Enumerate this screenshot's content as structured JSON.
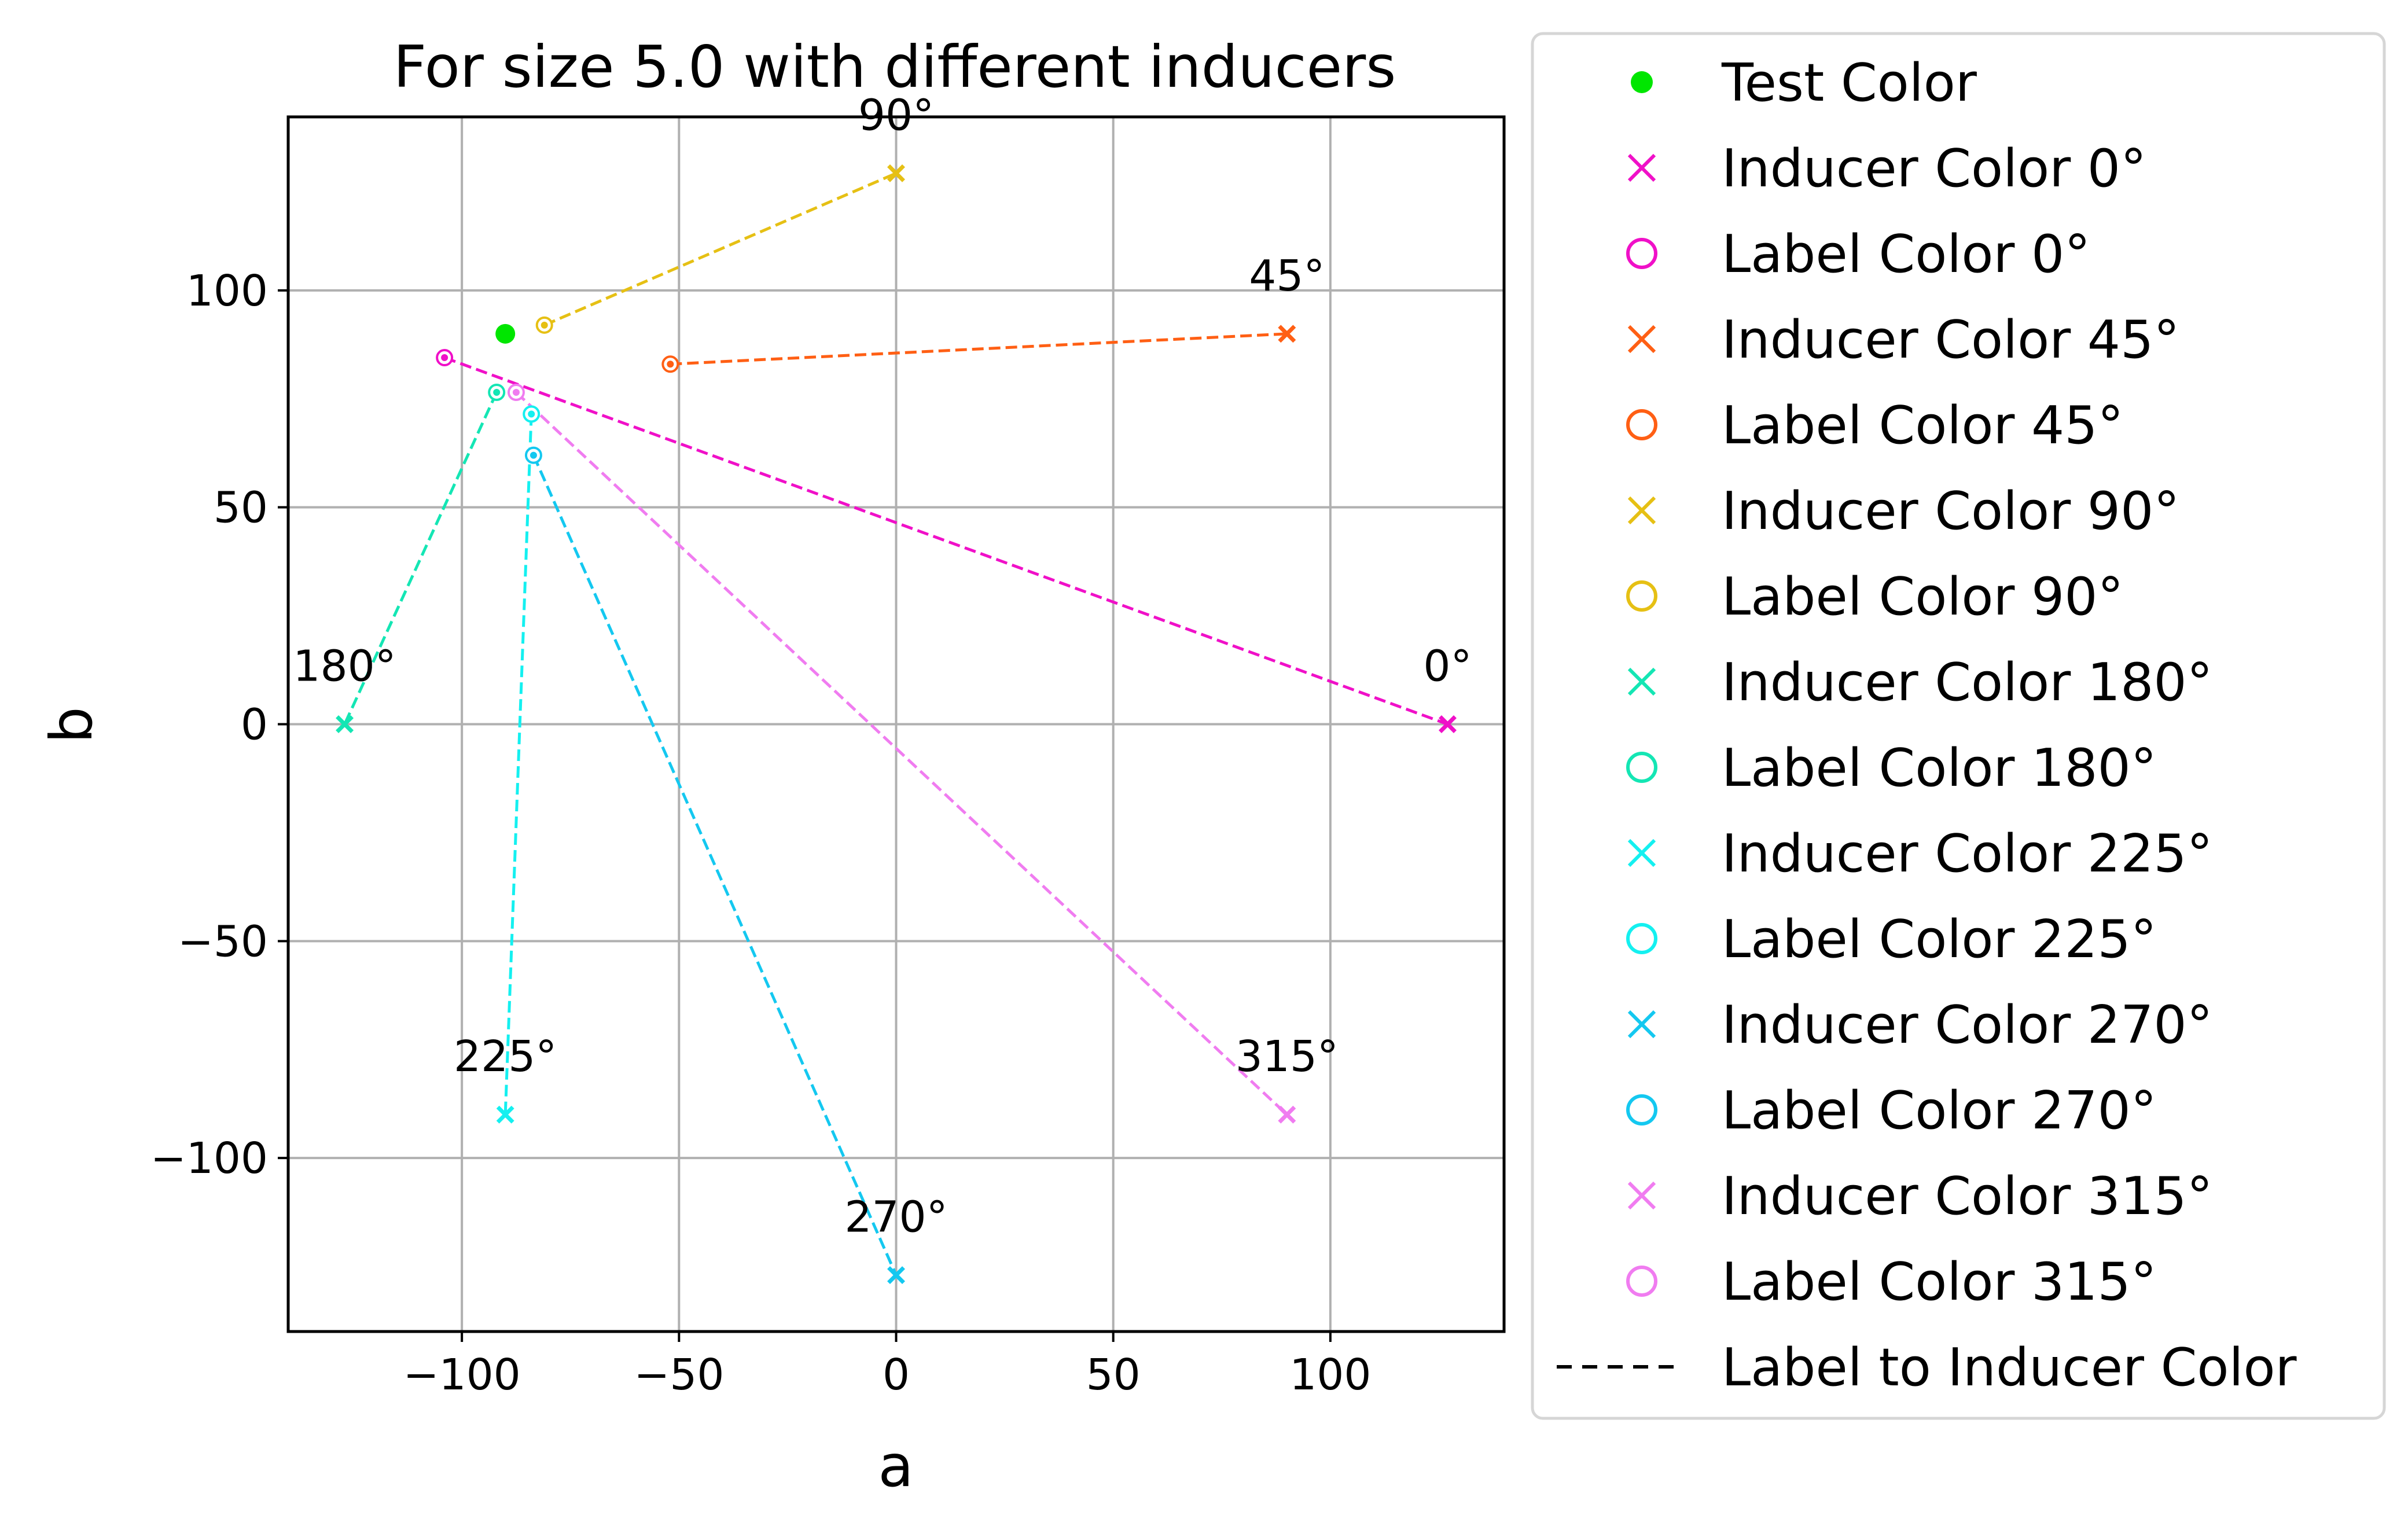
{
  "chart_data": {
    "type": "scatter",
    "title": "For size 5.0 with different inducers",
    "xlabel": "a",
    "ylabel": "b",
    "xlim": [
      -140,
      140
    ],
    "ylim": [
      -140,
      140
    ],
    "xticks": [
      -100,
      -50,
      0,
      50,
      100
    ],
    "yticks": [
      -100,
      -50,
      0,
      50,
      100
    ],
    "xtick_labels": [
      "−100",
      "−50",
      "0",
      "50",
      "100"
    ],
    "ytick_labels": [
      "−100",
      "−50",
      "0",
      "50",
      "100"
    ],
    "grid": true,
    "legend_placement": "outside-right",
    "test_color": {
      "name": "Test Color",
      "a": -90,
      "b": 90,
      "color": "#00e600"
    },
    "series": [
      {
        "angle_label": "0°",
        "inducer_name": "Inducer Color 0°",
        "label_name": "Label Color 0°",
        "color": "#f010c8",
        "inducer": [
          127,
          0
        ],
        "label": [
          -104,
          84.5
        ]
      },
      {
        "angle_label": "45°",
        "inducer_name": "Inducer Color 45°",
        "label_name": "Label Color 45°",
        "color": "#ff5f14",
        "inducer": [
          90,
          90
        ],
        "label": [
          -52,
          83
        ]
      },
      {
        "angle_label": "90°",
        "inducer_name": "Inducer Color 90°",
        "label_name": "Label Color 90°",
        "color": "#e6c014",
        "inducer": [
          0,
          127
        ],
        "label": [
          -81,
          92
        ]
      },
      {
        "angle_label": "180°",
        "inducer_name": "Inducer Color 180°",
        "label_name": "Label Color 180°",
        "color": "#14e6b4",
        "inducer": [
          -127,
          0
        ],
        "label": [
          -92,
          76.5
        ]
      },
      {
        "angle_label": "225°",
        "inducer_name": "Inducer Color 225°",
        "label_name": "Label Color 225°",
        "color": "#14f0f0",
        "inducer": [
          -90,
          -90
        ],
        "label": [
          -84,
          71.5
        ]
      },
      {
        "angle_label": "270°",
        "inducer_name": "Inducer Color 270°",
        "label_name": "Label Color 270°",
        "color": "#14c8f0",
        "inducer": [
          0,
          -127
        ],
        "label": [
          -83.5,
          62
        ]
      },
      {
        "angle_label": "315°",
        "inducer_name": "Inducer Color 315°",
        "label_name": "Label Color 315°",
        "color": "#f07cf0",
        "inducer": [
          90,
          -90
        ],
        "label": [
          -87.5,
          76.5
        ]
      }
    ],
    "line_legend": {
      "name": "Label to Inducer Color",
      "color": "#000000"
    }
  }
}
